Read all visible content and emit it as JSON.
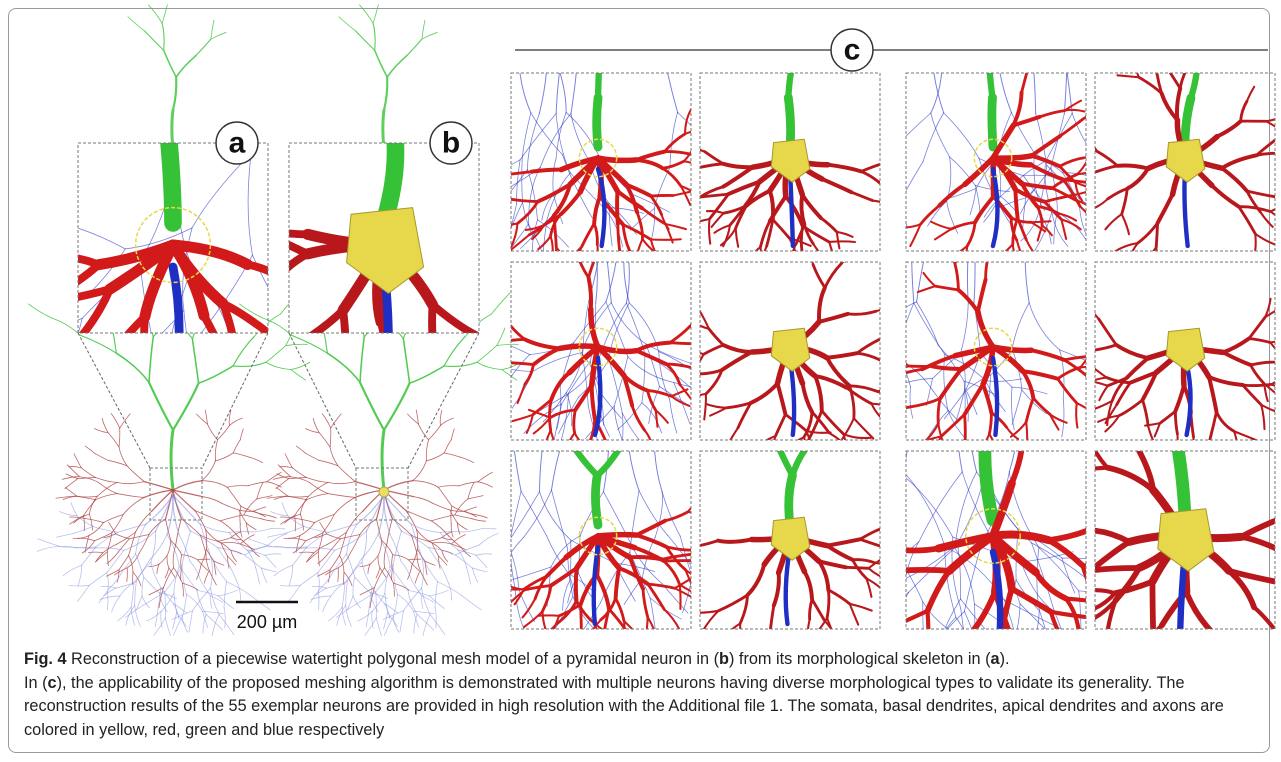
{
  "panels": {
    "a": "a",
    "b": "b",
    "c": "c"
  },
  "scale_bar": "200 µm",
  "caption": [
    "Fig. 4",
    " Reconstruction of a piecewise watertight polygonal mesh model of a pyramidal neuron in (",
    "b",
    ") from its morphological skeleton in (",
    "a",
    ").",
    "In (",
    "c",
    "), the applicability of the proposed meshing algorithm is demonstrated with multiple neurons having diverse morphological types to validate its generality. The reconstruction results of the 55 exemplar neurons are provided in high resolution with the Additional file 1. The somata, basal dendrites, apical dendrites and axons are colored in yellow, red, green and blue respectively"
  ]
}
